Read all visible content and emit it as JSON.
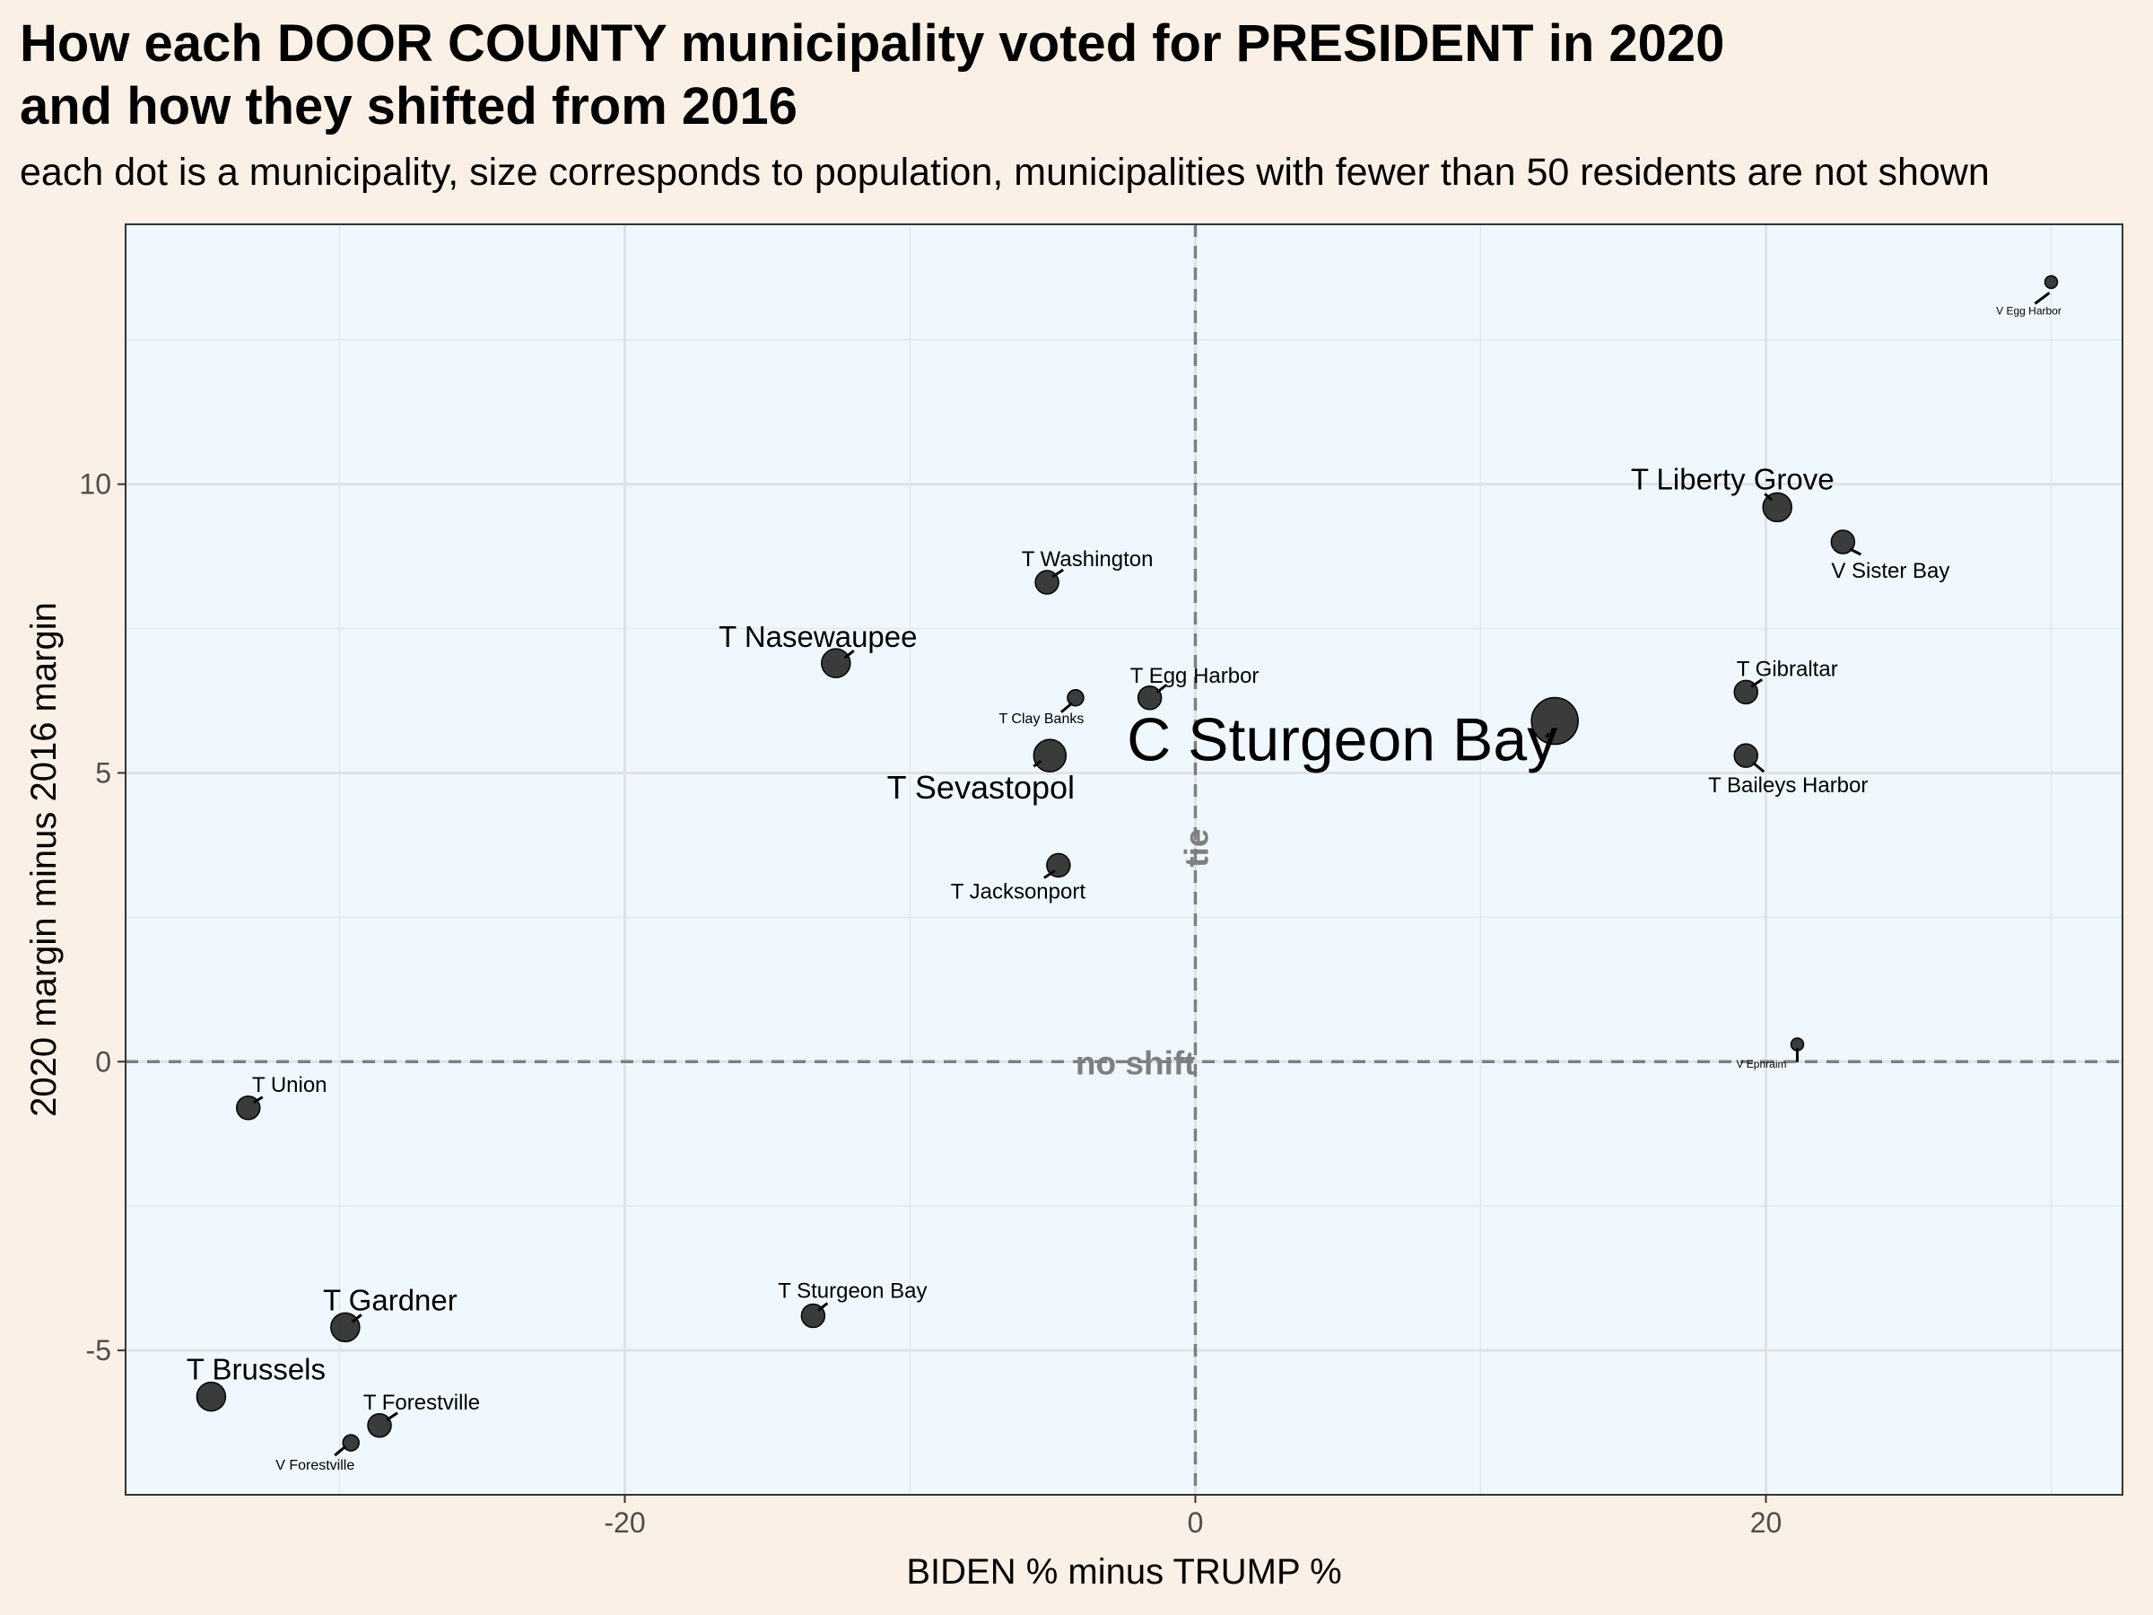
{
  "title": "How each DOOR COUNTY municipality voted for PRESIDENT in 2020\nand how they shifted from 2016",
  "subtitle": "each dot is a municipality, size corresponds to population, municipalities with fewer than 50 residents are not shown",
  "chart_data": {
    "type": "scatter",
    "xlabel": "BIDEN % minus TRUMP %",
    "ylabel": "2020 margin minus 2016 margin",
    "xlim": [
      -37.5,
      32.5
    ],
    "ylim": [
      -7.5,
      14.5
    ],
    "x_ticks": [
      -20,
      0,
      20
    ],
    "y_ticks": [
      -5,
      0,
      5,
      10
    ],
    "grid": true,
    "background_color": "#f0f8ff",
    "page_background": "#faf0e6",
    "point_color": "#262626",
    "reference_lines": [
      {
        "axis": "x",
        "value": 0,
        "label": "tie"
      },
      {
        "axis": "y",
        "value": 0,
        "label": "no shift"
      }
    ],
    "points": [
      {
        "name": "V Egg Harbor",
        "x": 30.0,
        "y": 13.5,
        "size": "tiny"
      },
      {
        "name": "T Liberty Grove",
        "x": 20.4,
        "y": 9.6,
        "size": "medium-large"
      },
      {
        "name": "V Sister Bay",
        "x": 22.7,
        "y": 9.0,
        "size": "medium"
      },
      {
        "name": "T Washington",
        "x": -5.2,
        "y": 8.3,
        "size": "medium"
      },
      {
        "name": "T Nasewaupee",
        "x": -12.6,
        "y": 6.9,
        "size": "medium-large"
      },
      {
        "name": "T Egg Harbor",
        "x": -1.6,
        "y": 6.3,
        "size": "medium"
      },
      {
        "name": "T Clay Banks",
        "x": -4.2,
        "y": 6.3,
        "size": "small"
      },
      {
        "name": "T Gibraltar",
        "x": 19.3,
        "y": 6.4,
        "size": "medium"
      },
      {
        "name": "C Sturgeon Bay",
        "x": 12.6,
        "y": 5.9,
        "size": "huge"
      },
      {
        "name": "T Sevastopol",
        "x": -5.1,
        "y": 5.3,
        "size": "large"
      },
      {
        "name": "T Baileys Harbor",
        "x": 19.3,
        "y": 5.3,
        "size": "medium"
      },
      {
        "name": "T Jacksonport",
        "x": -4.8,
        "y": 3.4,
        "size": "medium"
      },
      {
        "name": "V Ephraim",
        "x": 21.1,
        "y": 0.3,
        "size": "tiny"
      },
      {
        "name": "T Union",
        "x": -33.2,
        "y": -0.8,
        "size": "medium"
      },
      {
        "name": "T Gardner",
        "x": -29.8,
        "y": -4.6,
        "size": "medium-large"
      },
      {
        "name": "T Sturgeon Bay",
        "x": -13.4,
        "y": -4.4,
        "size": "medium"
      },
      {
        "name": "T Brussels",
        "x": -34.5,
        "y": -5.8,
        "size": "medium-large"
      },
      {
        "name": "T Forestville",
        "x": -28.6,
        "y": -6.3,
        "size": "medium"
      },
      {
        "name": "V Forestville",
        "x": -29.6,
        "y": -6.6,
        "size": "small"
      }
    ]
  }
}
